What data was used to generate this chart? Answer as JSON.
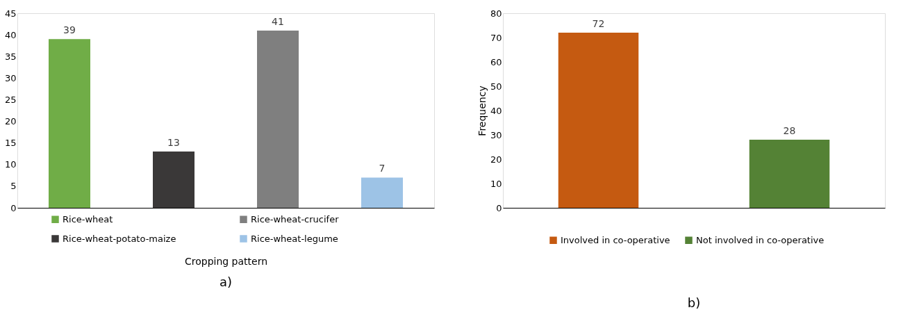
{
  "chart_data": [
    {
      "type": "bar",
      "categories": [
        null,
        null,
        null,
        null
      ],
      "xlabel": "Cropping pattern",
      "ylim": [
        0,
        45
      ],
      "yticks": [
        0,
        5,
        10,
        15,
        20,
        25,
        30,
        35,
        40,
        45
      ],
      "grid": false,
      "legend": "bottom",
      "tick_labels": "y",
      "data_labels": true,
      "annotations": [
        "a)"
      ],
      "series": [
        {
          "name": "Rice-wheat",
          "color": "#70ad47",
          "values": [
            39,
            null,
            null,
            null
          ]
        },
        {
          "name": "Rice-wheat-potato-maize",
          "color": "#3a3838",
          "values": [
            null,
            13,
            null,
            null
          ]
        },
        {
          "name": "Rice-wheat-crucifer",
          "color": "#7f7f7f",
          "values": [
            null,
            null,
            41,
            null
          ]
        },
        {
          "name": "Rice-wheat-legume",
          "color": "#9dc3e6",
          "values": [
            null,
            null,
            null,
            7
          ]
        }
      ]
    },
    {
      "type": "bar",
      "categories": [
        null,
        null
      ],
      "ylabel": "Frequency",
      "ylim": [
        0,
        80
      ],
      "yticks": [
        0,
        10,
        20,
        30,
        40,
        50,
        60,
        70,
        80
      ],
      "grid": false,
      "legend": "bottom",
      "tick_labels": "y",
      "data_labels": true,
      "annotations": [
        "b)"
      ],
      "series": [
        {
          "name": "Involved in co-operative",
          "color": "#c55a11",
          "values": [
            72,
            null
          ]
        },
        {
          "name": "Not involved in co-operative",
          "color": "#548235",
          "values": [
            null,
            28
          ]
        }
      ]
    }
  ]
}
